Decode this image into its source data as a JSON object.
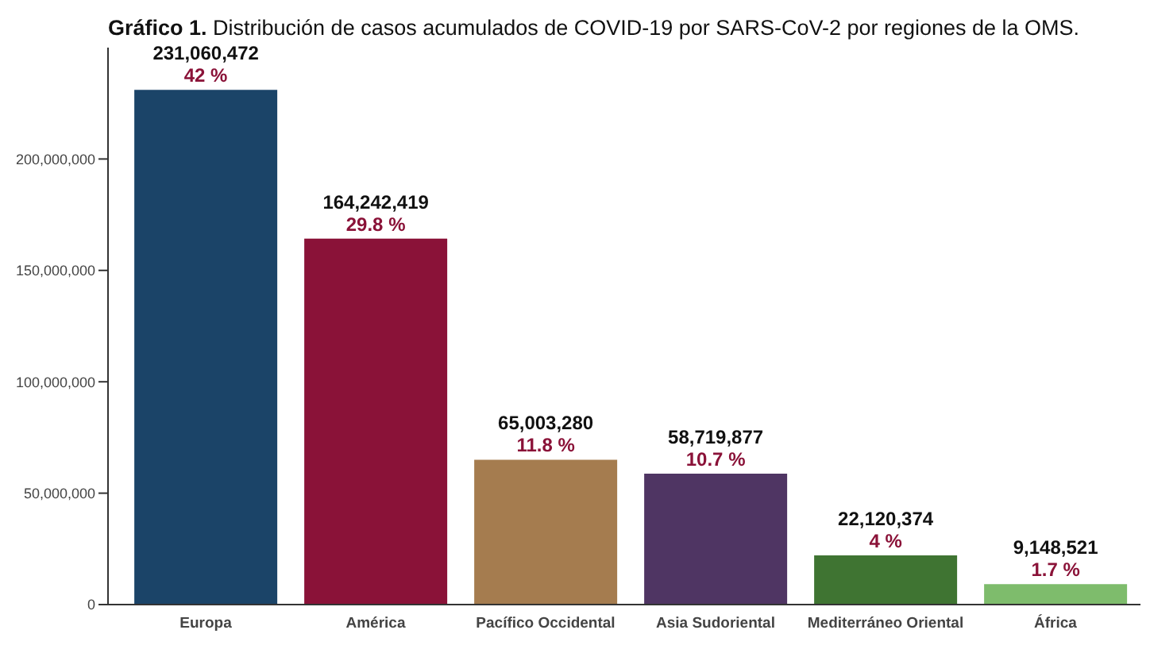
{
  "chart_data": {
    "type": "bar",
    "title": "Gráfico 1. Distribución de casos acumulados de COVID-19 por SARS-CoV-2 por regiones de la OMS.",
    "categories": [
      "Europa",
      "América",
      "Pacífico Occidental",
      "Asia Sudoriental",
      "Mediterráneo Oriental",
      "África"
    ],
    "values": [
      231060472,
      164242419,
      65003280,
      58719877,
      22120374,
      9148521
    ],
    "colors": [
      "#1b4468",
      "#8a1238",
      "#a57c4f",
      "#4f3563",
      "#3f7432",
      "#7ebc6c"
    ],
    "value_labels": [
      "231,060,472",
      "164,242,419",
      "65,003,280",
      "58,719,877",
      "22,120,374",
      "9,148,521"
    ],
    "annotations": [
      {
        "text": "42 %",
        "x": "Europa",
        "y": 231060472
      },
      {
        "text": "29.8 %",
        "x": "América",
        "y": 164242419
      },
      {
        "text": "11.8 %",
        "x": "Pacífico Occidental",
        "y": 65003280
      },
      {
        "text": "10.7 %",
        "x": "Asia Sudoriental",
        "y": 58719877
      },
      {
        "text": "4 %",
        "x": "Mediterráneo Oriental",
        "y": 22120374
      },
      {
        "text": "1.7 %",
        "x": "África",
        "y": 9148521
      }
    ],
    "ylim": [
      0,
      250000000
    ],
    "yticks": [
      0,
      {
        "value": 50000000,
        "label": "50,000,000"
      },
      {
        "value": 100000000,
        "label": "100,000,000"
      },
      {
        "value": 150000000,
        "label": "150,000,000"
      },
      {
        "value": 200000000,
        "label": "200,000,000"
      }
    ],
    "grid": false,
    "legend": false
  }
}
